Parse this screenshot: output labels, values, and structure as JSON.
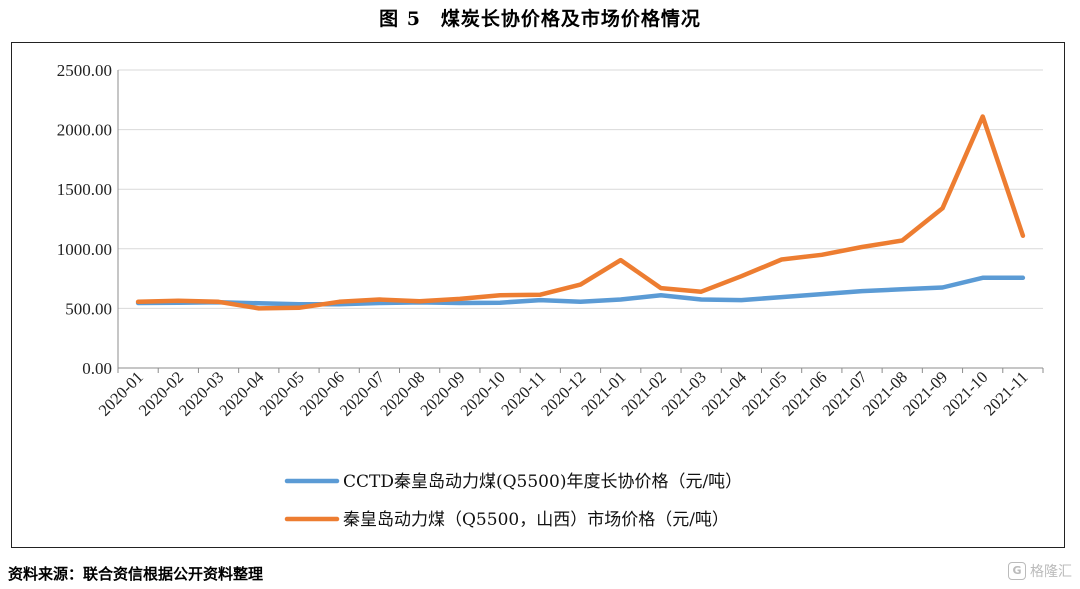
{
  "title": "图 5　煤炭长协价格及市场价格情况",
  "source": "资料来源：联合资信根据公开资料整理",
  "watermark": "格隆汇",
  "chart_data": {
    "type": "line",
    "categories": [
      "2020-01",
      "2020-02",
      "2020-03",
      "2020-04",
      "2020-05",
      "2020-06",
      "2020-07",
      "2020-08",
      "2020-09",
      "2020-10",
      "2020-11",
      "2020-12",
      "2021-01",
      "2021-02",
      "2021-03",
      "2021-04",
      "2021-05",
      "2021-06",
      "2021-07",
      "2021-08",
      "2021-09",
      "2021-10",
      "2021-11"
    ],
    "ylim": [
      0,
      2500
    ],
    "yticks": [
      "0.00",
      "500.00",
      "1000.00",
      "1500.00",
      "2000.00",
      "2500.00"
    ],
    "grid": true,
    "legend_position": "bottom",
    "series": [
      {
        "name": "CCTD秦皇岛动力煤(Q5500)年度长协价格（元/吨）",
        "color": "#5B9BD5",
        "values": [
          545,
          548,
          552,
          543,
          535,
          535,
          545,
          550,
          545,
          548,
          570,
          556,
          575,
          610,
          575,
          570,
          595,
          620,
          645,
          660,
          675,
          757,
          757
        ]
      },
      {
        "name": "秦皇岛动力煤（Q5500，山西）市场价格（元/吨）",
        "color": "#ED7D31",
        "values": [
          555,
          565,
          555,
          500,
          505,
          555,
          575,
          560,
          580,
          610,
          615,
          700,
          905,
          670,
          640,
          770,
          910,
          950,
          1015,
          1070,
          1340,
          2110,
          1110
        ]
      }
    ]
  }
}
